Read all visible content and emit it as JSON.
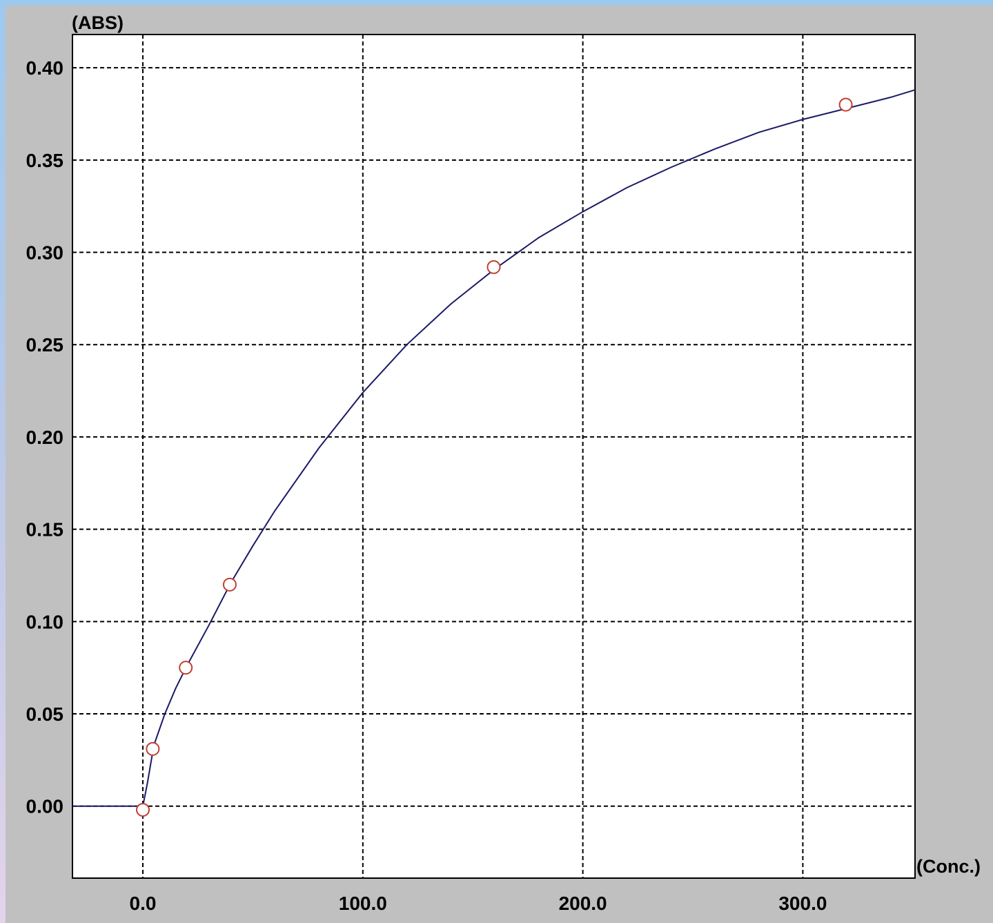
{
  "chart_data": {
    "type": "scatter",
    "title": "",
    "xlabel": "(Conc.)",
    "ylabel": "(ABS)",
    "xlim": [
      -32,
      351
    ],
    "ylim": [
      -0.039,
      0.418
    ],
    "x_ticks": [
      0.0,
      100.0,
      200.0,
      300.0
    ],
    "x_tick_labels": [
      "0.0",
      "100.0",
      "200.0",
      "300.0"
    ],
    "y_ticks": [
      0.0,
      0.05,
      0.1,
      0.15,
      0.2,
      0.25,
      0.3,
      0.35,
      0.4
    ],
    "y_tick_labels": [
      "0.00",
      "0.05",
      "0.10",
      "0.15",
      "0.20",
      "0.25",
      "0.30",
      "0.35",
      "0.40"
    ],
    "grid": true,
    "points": {
      "x": [
        0,
        4.5,
        19.5,
        39.5,
        159.5,
        319.5
      ],
      "y": [
        -0.002,
        0.031,
        0.075,
        0.12,
        0.292,
        0.38
      ]
    },
    "fit_curve": {
      "x": [
        -32,
        0,
        2,
        5,
        10,
        15,
        20,
        30,
        40,
        50,
        60,
        80,
        100,
        120,
        140,
        160,
        180,
        200,
        220,
        240,
        260,
        280,
        300,
        320,
        340,
        351
      ],
      "y": [
        0.0,
        0.0,
        0.012,
        0.033,
        0.05,
        0.064,
        0.076,
        0.098,
        0.121,
        0.141,
        0.16,
        0.194,
        0.224,
        0.25,
        0.272,
        0.291,
        0.308,
        0.322,
        0.335,
        0.346,
        0.356,
        0.365,
        0.372,
        0.378,
        0.384,
        0.388
      ]
    },
    "colors": {
      "curve": "#1a1a66",
      "marker_stroke": "#c04030",
      "marker_fill": "#ffffff",
      "grid": "#000000",
      "plot_background": "#ffffff",
      "frame_background": "#c0c0c0"
    }
  }
}
